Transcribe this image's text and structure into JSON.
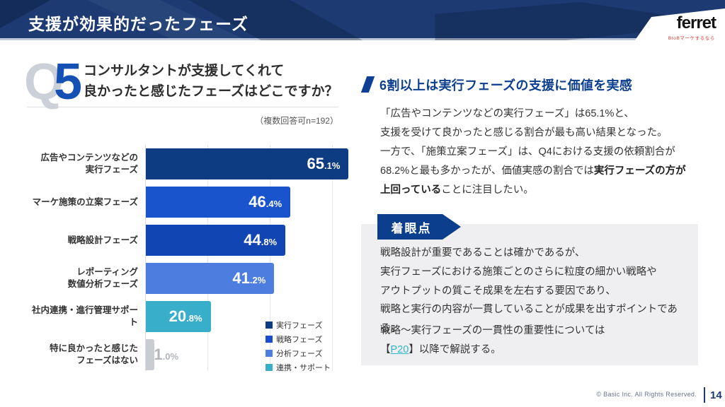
{
  "header": {
    "title": "支援が効果的だったフェーズ",
    "logo_text": "ferret",
    "logo_tagline": "BtoBマーケするなら"
  },
  "question": {
    "q_letter": "Q",
    "q_number": "5",
    "text": "コンサルタントが支援してくれて\n良かったと感じたフェーズはどこですか？",
    "note": "（複数回答可n=192）"
  },
  "chart_data": {
    "type": "bar",
    "orientation": "horizontal",
    "categories": [
      "広告やコンテンツなどの実行フェーズ",
      "マーケ施策の立案フェーズ",
      "戦略設計フェーズ",
      "レポーティング数値分析フェーズ",
      "社内連携・進行管理サポート",
      "特に良かったと感じたフェーズはない"
    ],
    "category_lines": [
      [
        "広告やコンテンツなどの",
        "実行フェーズ"
      ],
      [
        "マーケ施策の立案フェーズ"
      ],
      [
        "戦略設計フェーズ"
      ],
      [
        "レポーティング",
        "数値分析フェーズ"
      ],
      [
        "社内連携・進行管理サポート"
      ],
      [
        "特に良かったと感じた",
        "フェーズはない"
      ]
    ],
    "values": [
      65.1,
      46.4,
      44.8,
      41.2,
      20.8,
      1.0
    ],
    "bar_colors": [
      "#0e3c82",
      "#1a54cc",
      "#1245b4",
      "#4e7de0",
      "#38aecb",
      "#c9ccd1"
    ],
    "value_inside": [
      true,
      true,
      true,
      true,
      true,
      false
    ],
    "xlim": [
      0,
      66
    ],
    "gridlines": [
      20,
      40,
      60
    ],
    "grid": true,
    "unit": "%",
    "legend_position": "bottom-right",
    "legend": [
      {
        "label": "実行フェーズ",
        "color": "#0e3c82"
      },
      {
        "label": "戦略フェーズ",
        "color": "#1a4ccc"
      },
      {
        "label": "分析フェーズ",
        "color": "#4e7de0"
      },
      {
        "label": "連携・サポート",
        "color": "#38aecb"
      }
    ]
  },
  "analysis": {
    "heading": "6割以上は実行フェーズの支援に価値を実感",
    "para1": "「広告やコンテンツなどの実行フェーズ」は65.1%と、\n支援を受けて良かったと感じる割合が最も高い結果となった。",
    "para2_before": "一方で、「施策立案フェーズ」は、Q4における支援の依頼割合が\n68.2%と最も多かったが、価値実感の割合では",
    "para2_bold": "実行フェーズの方が\n上回っている",
    "para2_after": "ことに注目したい。"
  },
  "focus_box": {
    "badge": "着眼点",
    "body": "戦略設計が重要であることは確かであるが、\n実行フェーズにおける施策ごとのさらに粒度の細かい戦略や\nアウトプットの質こそ成果を左右する要因であり、\n戦略と実行の内容が一貫していることが成果を出すポイントである。",
    "para2_before": "戦略〜実行フェーズの一貫性の重要性については\n【",
    "link": "P20",
    "para2_after": "】以降で解説する。"
  },
  "footer": {
    "copyright": "© Basic Inc. All Rights Reserved.",
    "page": "14"
  },
  "colors": {
    "header_bg": "#1d3b72",
    "accent_blue": "#0c3e8e",
    "q_number_blue": "#1550b4",
    "link_teal": "#2fb6ca",
    "focus_box_bg": "#efeff1",
    "logo_tagline_red": "#e03a2e"
  }
}
